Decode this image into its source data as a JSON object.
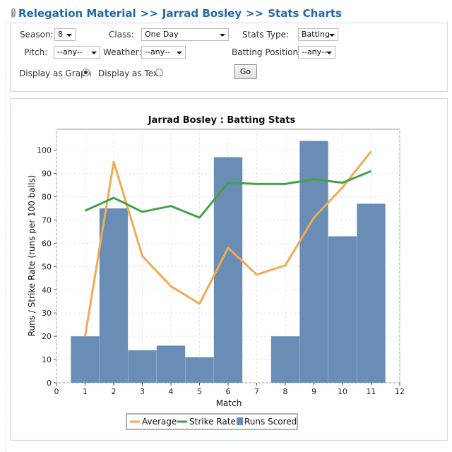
{
  "breadcrumb": {
    "items": [
      "Relegation Material",
      "Jarrad Bosley",
      "Stats Charts"
    ],
    "separator": ">>"
  },
  "filters": {
    "season": {
      "label": "Season:",
      "value": "8"
    },
    "class": {
      "label": "Class:",
      "value": "One Day"
    },
    "stats_type": {
      "label": "Stats Type:",
      "value": "Batting"
    },
    "pitch": {
      "label": "Pitch:",
      "value": "--any--"
    },
    "weather": {
      "label": "Weather:",
      "value": "--any--"
    },
    "batting_position": {
      "label": "Batting Position:",
      "value": "--any--"
    },
    "display_graph": {
      "label": "Display as Graph",
      "selected": true
    },
    "display_text": {
      "label": "Display as Text",
      "selected": false
    },
    "go_label": "Go"
  },
  "colors": {
    "link": "#2266aa",
    "bars": "#6a8db5",
    "average": "#f2aa55",
    "strike_rate": "#44a048"
  },
  "chart_data": {
    "type": "bar",
    "title": "Jarrad Bosley : Batting Stats",
    "xlabel": "Match",
    "ylabel": "Runs / Strike Rate (runs per 100 balls)",
    "xlim": [
      0,
      12
    ],
    "ylim": [
      0,
      109
    ],
    "xticks": [
      0,
      1,
      2,
      3,
      4,
      5,
      6,
      7,
      8,
      9,
      10,
      11,
      12
    ],
    "yticks": [
      0,
      10,
      20,
      30,
      40,
      50,
      60,
      70,
      80,
      90,
      100
    ],
    "grid": true,
    "legend_position": "bottom-center",
    "x": [
      1,
      2,
      3,
      4,
      5,
      6,
      7,
      8,
      9,
      10,
      11
    ],
    "series": [
      {
        "name": "Runs Scored",
        "kind": "bar",
        "values": [
          20,
          75,
          14,
          16,
          11,
          97,
          null,
          20,
          104,
          63,
          77
        ]
      },
      {
        "name": "Average",
        "kind": "line",
        "values": [
          20,
          95,
          54.5,
          41.5,
          34,
          58,
          46.5,
          50.5,
          71,
          84,
          99.5
        ]
      },
      {
        "name": "Strike Rate",
        "kind": "line",
        "values": [
          74,
          79.5,
          73.5,
          76,
          71,
          86,
          85.5,
          85.5,
          87.5,
          86,
          91
        ]
      }
    ]
  }
}
